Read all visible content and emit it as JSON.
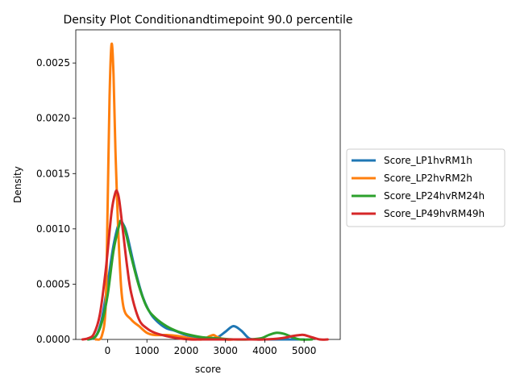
{
  "chart_data": {
    "type": "line",
    "title": "Density Plot Conditionandtimepoint 90.0 percentile",
    "xlabel": "score",
    "ylabel": "Density",
    "xlim": [
      -810,
      5920
    ],
    "ylim": [
      0,
      0.0028
    ],
    "x_ticks": [
      0,
      1000,
      2000,
      3000,
      4000,
      5000
    ],
    "x_tick_labels": [
      "0",
      "1000",
      "2000",
      "3000",
      "4000",
      "5000"
    ],
    "y_ticks": [
      0.0,
      0.0005,
      0.001,
      0.0015,
      0.002,
      0.0025
    ],
    "y_tick_labels": [
      "0.0000",
      "0.0005",
      "0.0010",
      "0.0015",
      "0.0020",
      "0.0025"
    ],
    "grid": false,
    "legend_position": "outside-right",
    "series": [
      {
        "name": "Score_LP1hvRM1h",
        "color": "#1f77b4",
        "x": [
          -480,
          -300,
          -150,
          0,
          150,
          300,
          400,
          500,
          700,
          900,
          1100,
          1300,
          1500,
          1700,
          2000,
          2300,
          2600,
          2800,
          3000,
          3200,
          3400,
          3600,
          3800,
          4000,
          4300,
          4700,
          5000
        ],
        "y": [
          0.0,
          3e-05,
          0.00018,
          0.0005,
          0.00085,
          0.00106,
          0.00104,
          0.00094,
          0.00063,
          0.00038,
          0.00023,
          0.00015,
          0.0001,
          8e-05,
          4e-05,
          2e-05,
          1e-05,
          2e-05,
          7e-05,
          0.00012,
          8e-05,
          1e-05,
          0.0,
          0.0,
          0.0,
          0.0,
          0.0
        ]
      },
      {
        "name": "Score_LP2hvRM2h",
        "color": "#ff7f0e",
        "x": [
          -300,
          -150,
          -50,
          0,
          50,
          100,
          150,
          200,
          300,
          400,
          600,
          800,
          1000,
          1200,
          1500,
          1800,
          2100,
          2400,
          2600,
          2700,
          2800,
          3000,
          3200
        ],
        "y": [
          0.0,
          3e-05,
          0.0003,
          0.0012,
          0.0022,
          0.00267,
          0.0024,
          0.0017,
          0.00075,
          0.0003,
          0.00018,
          0.00012,
          6e-05,
          4e-05,
          4e-05,
          3e-05,
          1e-05,
          0.0,
          3e-05,
          4e-05,
          2e-05,
          0.0,
          0.0
        ]
      },
      {
        "name": "Score_LP24hvRM24h",
        "color": "#2ca02c",
        "x": [
          -500,
          -300,
          -150,
          0,
          150,
          300,
          350,
          450,
          600,
          800,
          1000,
          1200,
          1500,
          1800,
          2100,
          2400,
          2800,
          3200,
          3600,
          3900,
          4100,
          4300,
          4500,
          4700,
          4900,
          5200
        ],
        "y": [
          0.0,
          3e-05,
          0.00015,
          0.0004,
          0.0008,
          0.00104,
          0.00106,
          0.00098,
          0.00075,
          0.00048,
          0.00029,
          0.0002,
          0.00012,
          7e-05,
          4e-05,
          2e-05,
          1e-05,
          0.0,
          0.0,
          1e-05,
          4e-05,
          6e-05,
          5e-05,
          2e-05,
          0.0,
          0.0
        ]
      },
      {
        "name": "Score_LP49hvRM49h",
        "color": "#d62728",
        "x": [
          -640,
          -500,
          -350,
          -200,
          -50,
          100,
          200,
          250,
          300,
          400,
          500,
          600,
          800,
          1000,
          1200,
          1500,
          1800,
          2100,
          2500,
          3000,
          3500,
          4000,
          4400,
          4700,
          4900,
          5000,
          5200,
          5400,
          5600
        ],
        "y": [
          0.0,
          1e-05,
          5e-05,
          0.00022,
          0.00062,
          0.00115,
          0.00133,
          0.00133,
          0.00125,
          0.00095,
          0.00065,
          0.00042,
          0.00018,
          0.0001,
          6e-05,
          3e-05,
          1e-05,
          0.0,
          0.0,
          0.0,
          0.0,
          0.0,
          1e-05,
          3e-05,
          4e-05,
          4e-05,
          2e-05,
          0.0,
          0.0
        ]
      }
    ]
  }
}
